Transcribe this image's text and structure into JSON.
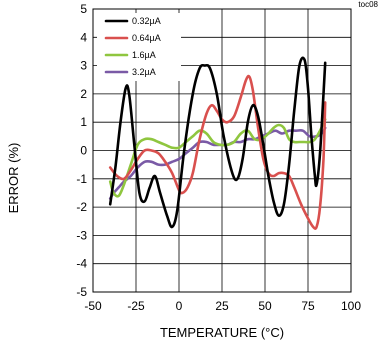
{
  "figure_id": "toc08",
  "chart_data": {
    "type": "line",
    "title": "",
    "xlabel": "TEMPERATURE (°C)",
    "ylabel": "ERROR (%)",
    "xlim": [
      -50,
      100
    ],
    "ylim": [
      -5,
      5
    ],
    "xticks": [
      -50,
      -25,
      0,
      25,
      50,
      75,
      100
    ],
    "yticks": [
      -5,
      -4,
      -3,
      -2,
      -1,
      0,
      1,
      2,
      3,
      4,
      5
    ],
    "grid": true,
    "legend_position": "top-left",
    "series": [
      {
        "name": "0.32µA",
        "color": "#000000",
        "points": [
          [
            -40,
            -1.9
          ],
          [
            -37,
            -0.6
          ],
          [
            -34,
            1.0
          ],
          [
            -31,
            2.2
          ],
          [
            -29,
            2.0
          ],
          [
            -26,
            0.2
          ],
          [
            -23,
            -1.5
          ],
          [
            -20,
            -1.8
          ],
          [
            -17,
            -1.3
          ],
          [
            -14,
            -0.9
          ],
          [
            -11,
            -1.5
          ],
          [
            -7,
            -2.3
          ],
          [
            -4,
            -2.7
          ],
          [
            -1,
            -2.1
          ],
          [
            3,
            0.0
          ],
          [
            8,
            2.0
          ],
          [
            12,
            2.9
          ],
          [
            15,
            3.0
          ],
          [
            18,
            2.9
          ],
          [
            22,
            2.0
          ],
          [
            26,
            0.5
          ],
          [
            31,
            -0.8
          ],
          [
            34,
            -1.0
          ],
          [
            37,
            -0.3
          ],
          [
            40,
            1.0
          ],
          [
            43,
            1.6
          ],
          [
            46,
            1.2
          ],
          [
            49,
            0.2
          ],
          [
            52,
            -0.9
          ],
          [
            55,
            -1.8
          ],
          [
            58,
            -2.3
          ],
          [
            61,
            -1.9
          ],
          [
            64,
            -0.5
          ],
          [
            67,
            1.4
          ],
          [
            70,
            3.0
          ],
          [
            73,
            3.2
          ],
          [
            75,
            2.2
          ],
          [
            77,
            0.5
          ],
          [
            79,
            -0.9
          ],
          [
            80,
            -1.2
          ],
          [
            82,
            -0.1
          ],
          [
            84,
            2.0
          ],
          [
            85,
            3.1
          ]
        ]
      },
      {
        "name": "0.64µA",
        "color": "#d9504e",
        "points": [
          [
            -40,
            -0.6
          ],
          [
            -36,
            -0.9
          ],
          [
            -32,
            -1.0
          ],
          [
            -28,
            -0.7
          ],
          [
            -24,
            -0.3
          ],
          [
            -20,
            0.0
          ],
          [
            -16,
            0.0
          ],
          [
            -12,
            -0.1
          ],
          [
            -8,
            -0.4
          ],
          [
            -4,
            -0.8
          ],
          [
            0,
            -1.4
          ],
          [
            2,
            -1.5
          ],
          [
            5,
            -1.3
          ],
          [
            8,
            -0.8
          ],
          [
            12,
            0.4
          ],
          [
            16,
            1.3
          ],
          [
            19,
            1.6
          ],
          [
            22,
            1.4
          ],
          [
            25,
            1.1
          ],
          [
            28,
            1.0
          ],
          [
            32,
            1.2
          ],
          [
            36,
            1.9
          ],
          [
            39,
            2.5
          ],
          [
            41,
            2.6
          ],
          [
            43,
            2.1
          ],
          [
            46,
            0.8
          ],
          [
            49,
            -0.3
          ],
          [
            52,
            -0.8
          ],
          [
            55,
            -0.9
          ],
          [
            58,
            -0.8
          ],
          [
            61,
            -0.8
          ],
          [
            64,
            -0.9
          ],
          [
            67,
            -1.3
          ],
          [
            71,
            -1.9
          ],
          [
            75,
            -2.4
          ],
          [
            78,
            -2.7
          ],
          [
            80,
            -2.7
          ],
          [
            82,
            -2.0
          ],
          [
            84,
            -0.3
          ],
          [
            85,
            1.7
          ]
        ]
      },
      {
        "name": "1.6µA",
        "color": "#8fc63f",
        "points": [
          [
            -40,
            -1.1
          ],
          [
            -38,
            -1.5
          ],
          [
            -35,
            -1.6
          ],
          [
            -32,
            -1.2
          ],
          [
            -28,
            -0.5
          ],
          [
            -24,
            0.2
          ],
          [
            -20,
            0.4
          ],
          [
            -16,
            0.4
          ],
          [
            -12,
            0.3
          ],
          [
            -8,
            0.2
          ],
          [
            -4,
            0.1
          ],
          [
            0,
            0.1
          ],
          [
            4,
            0.3
          ],
          [
            8,
            0.5
          ],
          [
            12,
            0.7
          ],
          [
            16,
            0.6
          ],
          [
            20,
            0.3
          ],
          [
            24,
            0.2
          ],
          [
            28,
            0.2
          ],
          [
            32,
            0.3
          ],
          [
            36,
            0.6
          ],
          [
            40,
            0.7
          ],
          [
            44,
            0.4
          ],
          [
            48,
            0.4
          ],
          [
            52,
            0.6
          ],
          [
            55,
            0.8
          ],
          [
            58,
            0.9
          ],
          [
            61,
            0.8
          ],
          [
            64,
            0.4
          ],
          [
            67,
            0.3
          ],
          [
            70,
            0.3
          ],
          [
            73,
            0.3
          ],
          [
            76,
            0.3
          ],
          [
            79,
            0.4
          ],
          [
            82,
            0.7
          ],
          [
            85,
            1.1
          ]
        ]
      },
      {
        "name": "3.2µA",
        "color": "#7a5aa6",
        "points": [
          [
            -40,
            -1.7
          ],
          [
            -38,
            -1.5
          ],
          [
            -35,
            -1.3
          ],
          [
            -32,
            -1.1
          ],
          [
            -28,
            -0.9
          ],
          [
            -24,
            -0.6
          ],
          [
            -20,
            -0.4
          ],
          [
            -16,
            -0.4
          ],
          [
            -12,
            -0.5
          ],
          [
            -8,
            -0.5
          ],
          [
            -4,
            -0.4
          ],
          [
            0,
            -0.3
          ],
          [
            4,
            -0.1
          ],
          [
            8,
            0.1
          ],
          [
            12,
            0.3
          ],
          [
            16,
            0.3
          ],
          [
            20,
            0.2
          ],
          [
            24,
            0.2
          ],
          [
            28,
            0.2
          ],
          [
            32,
            0.3
          ],
          [
            36,
            0.3
          ],
          [
            40,
            0.4
          ],
          [
            44,
            0.4
          ],
          [
            48,
            0.5
          ],
          [
            52,
            0.6
          ],
          [
            56,
            0.7
          ],
          [
            60,
            0.6
          ],
          [
            64,
            0.7
          ],
          [
            68,
            0.7
          ],
          [
            72,
            0.7
          ],
          [
            76,
            0.5
          ],
          [
            80,
            0.5
          ],
          [
            83,
            0.6
          ],
          [
            85,
            0.8
          ]
        ]
      }
    ]
  }
}
